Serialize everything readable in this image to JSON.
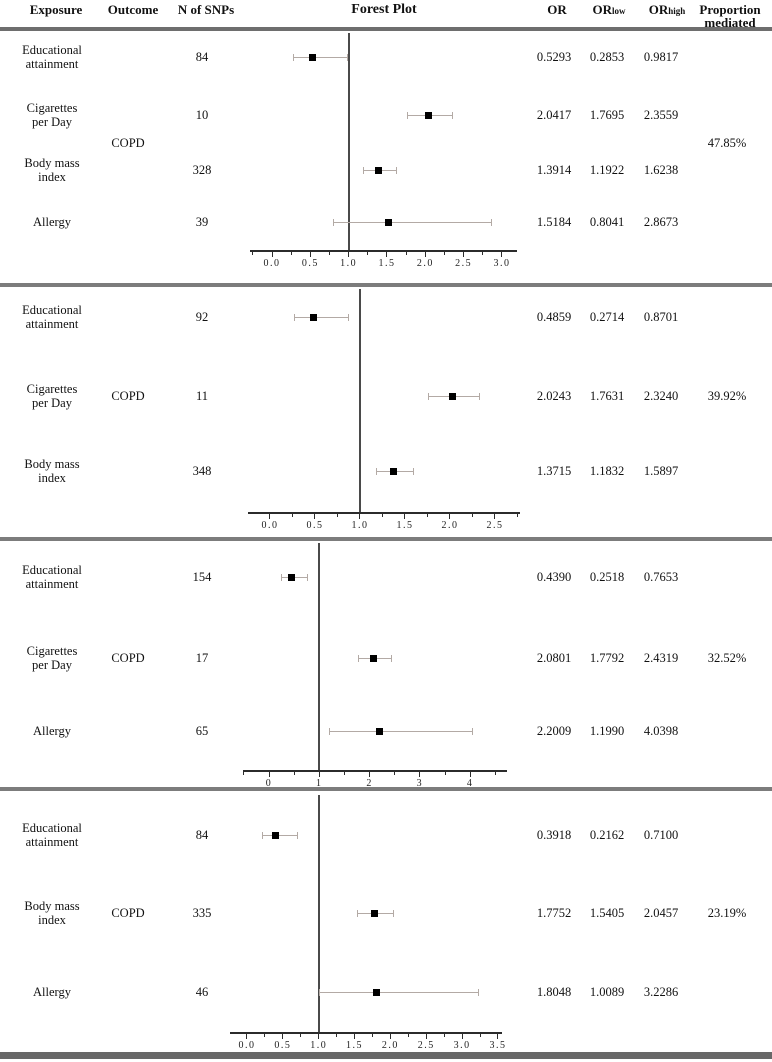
{
  "figure": {
    "columns": {
      "exposure": "Exposure",
      "outcome": "Outcome",
      "n_snps": "N of SNPs",
      "forest_plot": "Forest Plot",
      "or": "OR",
      "or_low_base": "OR",
      "or_low_sub": "low",
      "or_high_base": "OR",
      "or_high_sub": "high",
      "proportion_line1": "Proportion",
      "proportion_line2": "mediated"
    }
  },
  "chart_data": [
    {
      "type": "scatter",
      "subtype": "forest",
      "title": "",
      "xlabel": "",
      "outcome": "COPD",
      "proportion_mediated": "47.85%",
      "ref_line": 1.0,
      "xlim": [
        -0.287,
        3.196
      ],
      "minor_step": 0.25,
      "ticks": [
        {
          "v": 0.0,
          "label": "0.0"
        },
        {
          "v": 0.5,
          "label": "0.5"
        },
        {
          "v": 1.0,
          "label": "1.0"
        },
        {
          "v": 1.5,
          "label": "1.5"
        },
        {
          "v": 2.0,
          "label": "2.0"
        },
        {
          "v": 2.5,
          "label": "2.5"
        },
        {
          "v": 3.0,
          "label": "3.0"
        }
      ],
      "rows": [
        {
          "exposure": "Educational\nattainment",
          "n_snps": "84",
          "point": 0.5293,
          "low": 0.2853,
          "high": 0.9817,
          "or_text": "0.5293",
          "low_text": "0.2853",
          "high_text": "0.9817"
        },
        {
          "exposure": "Cigarettes\nper Day",
          "n_snps": "10",
          "point": 2.0417,
          "low": 1.7695,
          "high": 2.3559,
          "or_text": "2.0417",
          "low_text": "1.7695",
          "high_text": "2.3559"
        },
        {
          "exposure": "Body mass\nindex",
          "n_snps": "328",
          "point": 1.3914,
          "low": 1.1922,
          "high": 1.6238,
          "or_text": "1.3914",
          "low_text": "1.1922",
          "high_text": "1.6238"
        },
        {
          "exposure": "Allergy",
          "n_snps": "39",
          "point": 1.5184,
          "low": 0.8041,
          "high": 2.8673,
          "or_text": "1.5184",
          "low_text": "0.8041",
          "high_text": "2.8673"
        }
      ]
    },
    {
      "type": "scatter",
      "subtype": "forest",
      "title": "",
      "xlabel": "",
      "outcome": "COPD",
      "proportion_mediated": "39.92%",
      "ref_line": 1.0,
      "xlim": [
        -0.244,
        2.778
      ],
      "minor_step": 0.25,
      "ticks": [
        {
          "v": 0.0,
          "label": "0.0"
        },
        {
          "v": 0.5,
          "label": "0.5"
        },
        {
          "v": 1.0,
          "label": "1.0"
        },
        {
          "v": 1.5,
          "label": "1.5"
        },
        {
          "v": 2.0,
          "label": "2.0"
        },
        {
          "v": 2.5,
          "label": "2.5"
        }
      ],
      "rows": [
        {
          "exposure": "Educational\nattainment",
          "n_snps": "92",
          "point": 0.4859,
          "low": 0.2714,
          "high": 0.8701,
          "or_text": "0.4859",
          "low_text": "0.2714",
          "high_text": "0.8701"
        },
        {
          "exposure": "Cigarettes\nper Day",
          "n_snps": "11",
          "point": 2.0243,
          "low": 1.7631,
          "high": 2.324,
          "or_text": "2.0243",
          "low_text": "1.7631",
          "high_text": "2.3240"
        },
        {
          "exposure": "Body mass\nindex",
          "n_snps": "348",
          "point": 1.3715,
          "low": 1.1832,
          "high": 1.5897,
          "or_text": "1.3715",
          "low_text": "1.1832",
          "high_text": "1.5897"
        }
      ]
    },
    {
      "type": "scatter",
      "subtype": "forest",
      "title": "",
      "xlabel": "",
      "outcome": "COPD",
      "proportion_mediated": "32.52%",
      "ref_line": 1.0,
      "xlim": [
        -0.517,
        4.732
      ],
      "minor_step": 0.5,
      "ticks": [
        {
          "v": 0,
          "label": "0"
        },
        {
          "v": 1,
          "label": "1"
        },
        {
          "v": 2,
          "label": "2"
        },
        {
          "v": 3,
          "label": "3"
        },
        {
          "v": 4,
          "label": "4"
        }
      ],
      "rows": [
        {
          "exposure": "Educational\nattainment",
          "n_snps": "154",
          "point": 0.439,
          "low": 0.2518,
          "high": 0.7653,
          "or_text": "0.4390",
          "low_text": "0.2518",
          "high_text": "0.7653"
        },
        {
          "exposure": "Cigarettes\nper Day",
          "n_snps": "17",
          "point": 2.0801,
          "low": 1.7792,
          "high": 2.4319,
          "or_text": "2.0801",
          "low_text": "1.7792",
          "high_text": "2.4319"
        },
        {
          "exposure": "Allergy",
          "n_snps": "65",
          "point": 2.2009,
          "low": 1.199,
          "high": 4.0398,
          "or_text": "2.2009",
          "low_text": "1.1990",
          "high_text": "4.0398"
        }
      ]
    },
    {
      "type": "scatter",
      "subtype": "forest",
      "title": "",
      "xlabel": "",
      "outcome": "COPD",
      "proportion_mediated": "23.19%",
      "ref_line": 1.0,
      "xlim": [
        -0.237,
        3.556
      ],
      "minor_step": 0.25,
      "ticks": [
        {
          "v": 0.0,
          "label": "0.0"
        },
        {
          "v": 0.5,
          "label": "0.5"
        },
        {
          "v": 1.0,
          "label": "1.0"
        },
        {
          "v": 1.5,
          "label": "1.5"
        },
        {
          "v": 2.0,
          "label": "2.0"
        },
        {
          "v": 2.5,
          "label": "2.5"
        },
        {
          "v": 3.0,
          "label": "3.0"
        },
        {
          "v": 3.5,
          "label": "3.5"
        }
      ],
      "rows": [
        {
          "exposure": "Educational\nattainment",
          "n_snps": "84",
          "point": 0.3918,
          "low": 0.2162,
          "high": 0.71,
          "or_text": "0.3918",
          "low_text": "0.2162",
          "high_text": "0.7100"
        },
        {
          "exposure": "Body mass\nindex",
          "n_snps": "335",
          "point": 1.7752,
          "low": 1.5405,
          "high": 2.0457,
          "or_text": "1.7752",
          "low_text": "1.5405",
          "high_text": "2.0457"
        },
        {
          "exposure": "Allergy",
          "n_snps": "46",
          "point": 1.8048,
          "low": 1.0089,
          "high": 3.2286,
          "or_text": "1.8048",
          "low_text": "1.0089",
          "high_text": "3.2286"
        }
      ]
    }
  ]
}
